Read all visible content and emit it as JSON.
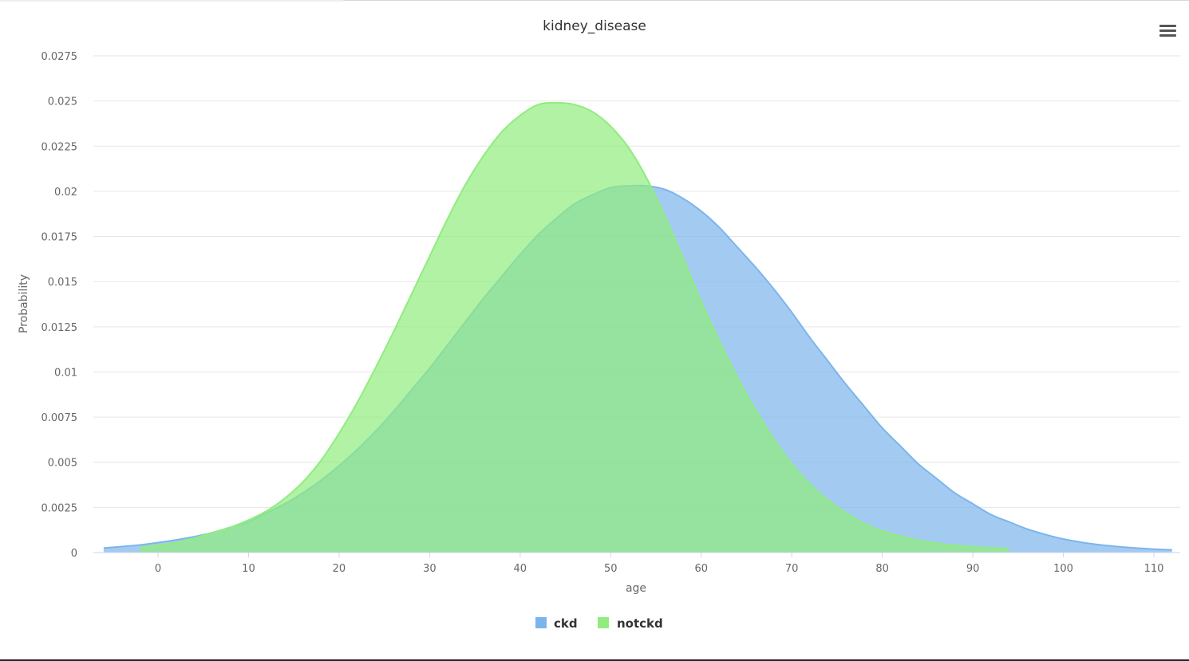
{
  "chart_data": {
    "type": "area",
    "title": "kidney_disease",
    "xlabel": "age",
    "ylabel": "Probability",
    "xlim": [
      -6.5,
      112.5
    ],
    "ylim": [
      0,
      0.0275
    ],
    "x_ticks": [
      "0",
      "10",
      "20",
      "30",
      "40",
      "50",
      "60",
      "70",
      "80",
      "90",
      "100",
      "110"
    ],
    "y_ticks": [
      "0",
      "0.0025",
      "0.005",
      "0.0075",
      "0.01",
      "0.0125",
      "0.015",
      "0.0175",
      "0.02",
      "0.0225",
      "0.025",
      "0.0275"
    ],
    "grid": true,
    "legend_position": "bottom-center",
    "series": [
      {
        "name": "ckd",
        "color": "#7cb5ec",
        "x": [
          -6,
          -4,
          -2,
          0,
          2,
          4,
          6,
          8,
          10,
          12,
          14,
          16,
          18,
          20,
          22,
          24,
          26,
          28,
          30,
          32,
          34,
          36,
          38,
          40,
          42,
          44,
          46,
          48,
          50,
          52,
          54,
          56,
          58,
          60,
          62,
          64,
          66,
          68,
          70,
          72,
          74,
          76,
          78,
          80,
          82,
          84,
          86,
          88,
          90,
          92,
          94,
          96,
          98,
          100,
          102,
          104,
          106,
          108,
          110,
          112
        ],
        "values": [
          0.00025,
          0.00033,
          0.00042,
          0.00055,
          0.0007,
          0.00088,
          0.0011,
          0.0014,
          0.0017,
          0.0022,
          0.0027,
          0.0033,
          0.004,
          0.0048,
          0.0057,
          0.0067,
          0.0078,
          0.009,
          0.0102,
          0.0115,
          0.0128,
          0.0141,
          0.0153,
          0.0165,
          0.0176,
          0.0185,
          0.0193,
          0.0198,
          0.0202,
          0.0203,
          0.0203,
          0.0201,
          0.0196,
          0.0189,
          0.018,
          0.0169,
          0.0158,
          0.0146,
          0.0133,
          0.0119,
          0.0106,
          0.0093,
          0.0081,
          0.0069,
          0.0059,
          0.0049,
          0.0041,
          0.0033,
          0.0027,
          0.0021,
          0.0017,
          0.0013,
          0.001,
          0.00075,
          0.00057,
          0.00043,
          0.00033,
          0.00025,
          0.00019,
          0.00015
        ]
      },
      {
        "name": "notckd",
        "color": "#90ed7d",
        "x": [
          -2,
          0,
          2,
          4,
          6,
          8,
          10,
          12,
          14,
          16,
          18,
          20,
          22,
          24,
          26,
          28,
          30,
          32,
          34,
          36,
          38,
          40,
          42,
          44,
          46,
          48,
          50,
          52,
          54,
          56,
          58,
          60,
          62,
          64,
          66,
          68,
          70,
          72,
          74,
          76,
          78,
          80,
          82,
          84,
          86,
          88,
          90,
          92,
          94
        ],
        "values": [
          0.0003,
          0.0004,
          0.00055,
          0.0008,
          0.0011,
          0.0014,
          0.0018,
          0.0023,
          0.003,
          0.0039,
          0.0051,
          0.0066,
          0.0083,
          0.0102,
          0.0122,
          0.0143,
          0.0164,
          0.0185,
          0.0204,
          0.022,
          0.0233,
          0.0242,
          0.0248,
          0.0249,
          0.0248,
          0.0244,
          0.0236,
          0.0224,
          0.0207,
          0.0186,
          0.0163,
          0.0139,
          0.0117,
          0.0097,
          0.0079,
          0.0063,
          0.0049,
          0.0038,
          0.0029,
          0.0022,
          0.0016,
          0.0012,
          0.0009,
          0.00068,
          0.00052,
          0.0004,
          0.00032,
          0.00026,
          0.00022
        ]
      }
    ]
  }
}
